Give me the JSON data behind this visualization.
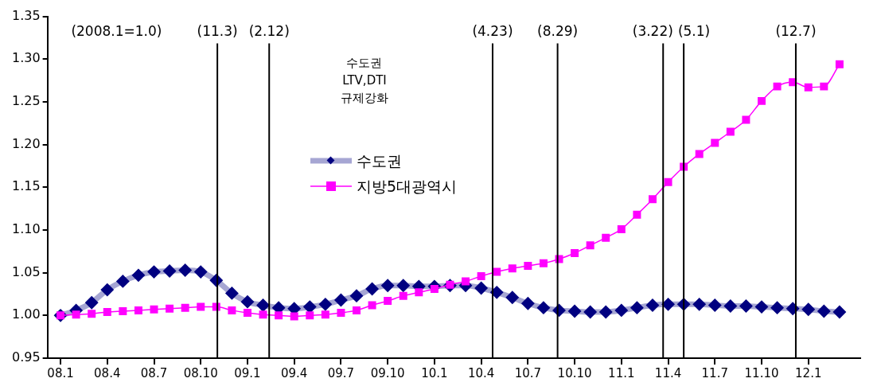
{
  "chart_data": {
    "type": "line",
    "x": [
      "2008-01",
      "2008-02",
      "2008-03",
      "2008-04",
      "2008-05",
      "2008-06",
      "2008-07",
      "2008-08",
      "2008-09",
      "2008-10",
      "2008-11",
      "2008-12",
      "2009-01",
      "2009-02",
      "2009-03",
      "2009-04",
      "2009-05",
      "2009-06",
      "2009-07",
      "2009-08",
      "2009-09",
      "2009-10",
      "2009-11",
      "2009-12",
      "2010-01",
      "2010-02",
      "2010-03",
      "2010-04",
      "2010-05",
      "2010-06",
      "2010-07",
      "2010-08",
      "2010-09",
      "2010-10",
      "2010-11",
      "2010-12",
      "2011-01",
      "2011-02",
      "2011-03",
      "2011-04",
      "2011-05",
      "2011-06",
      "2011-07",
      "2011-08",
      "2011-09",
      "2011-10",
      "2011-11",
      "2011-12",
      "2012-01",
      "2012-02",
      "2012-03"
    ],
    "series": [
      {
        "name": "수도권",
        "color": "#000080",
        "marker": "diamond",
        "values": [
          1.0,
          1.006,
          1.015,
          1.03,
          1.04,
          1.047,
          1.051,
          1.052,
          1.053,
          1.051,
          1.041,
          1.026,
          1.016,
          1.012,
          1.009,
          1.008,
          1.01,
          1.013,
          1.018,
          1.023,
          1.031,
          1.035,
          1.035,
          1.034,
          1.034,
          1.035,
          1.035,
          1.032,
          1.027,
          1.021,
          1.014,
          1.009,
          1.006,
          1.005,
          1.004,
          1.004,
          1.006,
          1.009,
          1.012,
          1.013,
          1.013,
          1.013,
          1.012,
          1.011,
          1.011,
          1.01,
          1.009,
          1.008,
          1.007,
          1.005,
          1.004
        ]
      },
      {
        "name": "지방5대광역시",
        "color": "#ff00ff",
        "marker": "square",
        "values": [
          1.0,
          1.001,
          1.002,
          1.004,
          1.005,
          1.006,
          1.007,
          1.008,
          1.009,
          1.01,
          1.01,
          1.006,
          1.003,
          1.001,
          1.0,
          0.999,
          1.0,
          1.001,
          1.003,
          1.006,
          1.012,
          1.017,
          1.023,
          1.027,
          1.031,
          1.036,
          1.04,
          1.046,
          1.051,
          1.055,
          1.058,
          1.061,
          1.066,
          1.073,
          1.082,
          1.091,
          1.101,
          1.118,
          1.136,
          1.156,
          1.174,
          1.189,
          1.202,
          1.215,
          1.229,
          1.251,
          1.268,
          1.273,
          1.267,
          1.268,
          1.294
        ]
      }
    ],
    "xlim": [
      "2007-12-06",
      "2012-04-11"
    ],
    "xticks": [
      {
        "value": "2008-01",
        "label": "08.1"
      },
      {
        "value": "2008-04",
        "label": "08.4"
      },
      {
        "value": "2008-07",
        "label": "08.7"
      },
      {
        "value": "2008-10",
        "label": "08.10"
      },
      {
        "value": "2009-01",
        "label": "09.1"
      },
      {
        "value": "2009-04",
        "label": "09.4"
      },
      {
        "value": "2009-07",
        "label": "09.7"
      },
      {
        "value": "2009-10",
        "label": "09.10"
      },
      {
        "value": "2010-01",
        "label": "10.1"
      },
      {
        "value": "2010-04",
        "label": "10.4"
      },
      {
        "value": "2010-07",
        "label": "10.7"
      },
      {
        "value": "2010-10",
        "label": "10.10"
      },
      {
        "value": "2011-01",
        "label": "11.1"
      },
      {
        "value": "2011-04",
        "label": "11.4"
      },
      {
        "value": "2011-07",
        "label": "11.7"
      },
      {
        "value": "2011-10",
        "label": "11.10"
      },
      {
        "value": "2012-01",
        "label": "12.1"
      }
    ],
    "ylim": [
      0.95,
      1.35
    ],
    "yticks": [
      {
        "value": 0.95,
        "label": "0.95"
      },
      {
        "value": 1.0,
        "label": "1.00"
      },
      {
        "value": 1.05,
        "label": "1.05"
      },
      {
        "value": 1.1,
        "label": "1.10"
      },
      {
        "value": 1.15,
        "label": "1.15"
      },
      {
        "value": 1.2,
        "label": "1.20"
      },
      {
        "value": 1.25,
        "label": "1.25"
      },
      {
        "value": 1.3,
        "label": "1.30"
      },
      {
        "value": 1.35,
        "label": "1.35"
      }
    ],
    "ref_lines": [
      {
        "axis": "x",
        "value": "2008-11-03",
        "label": "(11.3)",
        "color": "#000000"
      },
      {
        "axis": "x",
        "value": "2009-02-12",
        "label": "(2.12)",
        "color": "#000000"
      },
      {
        "axis": "x",
        "value": "2010-04-23",
        "label": "(4.23)",
        "color": "#000000"
      },
      {
        "axis": "x",
        "value": "2010-08-29",
        "label": "(8.29)",
        "color": "#000000"
      },
      {
        "axis": "x",
        "value": "2011-03-22",
        "label": "(3.22)",
        "color": "#000000"
      },
      {
        "axis": "x",
        "value": "2011-05-01",
        "label": "(5.1)",
        "color": "#000000"
      },
      {
        "axis": "x",
        "value": "2011-12-07",
        "label": "(12.7)",
        "color": "#000000"
      }
    ],
    "annotations": [
      "(2008.1=1.0)",
      "수도권\nLTV,DTI\n규제강화"
    ],
    "grid": false,
    "legend": "center"
  }
}
